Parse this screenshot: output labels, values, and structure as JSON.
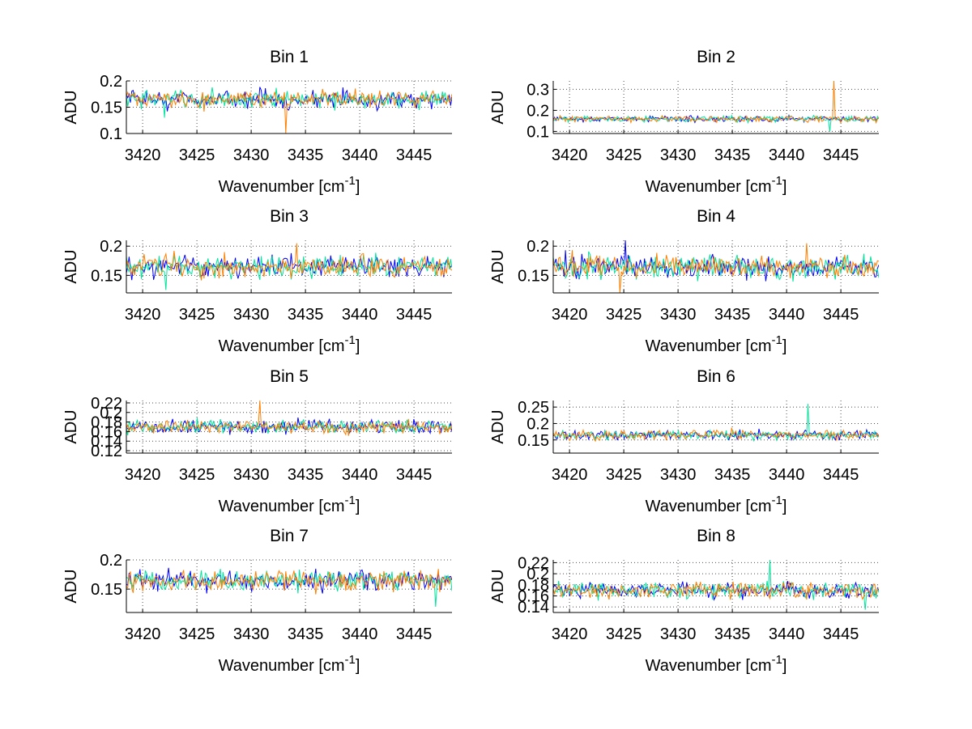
{
  "chart_data": {
    "type": "line",
    "series_colors": [
      "#0000ff",
      "#00e59a",
      "#ff7f00"
    ],
    "x_min": 3418.5,
    "x_max": 3448.5,
    "points_per_series": 240,
    "xticks": [
      3420,
      3425,
      3430,
      3435,
      3440,
      3445
    ],
    "xtick_labels": [
      "3420",
      "3425",
      "3430",
      "3435",
      "3440",
      "3445"
    ],
    "xlabel_text": "Wavenumber [cm",
    "xlabel_sup": "-1",
    "xlabel_close": "]",
    "ylabel": "ADU",
    "panels": [
      {
        "title": "Bin 1",
        "ylim": [
          0.1,
          0.2
        ],
        "yticks": [
          0.1,
          0.15,
          0.2
        ],
        "ytick_labels": [
          "0.1",
          "0.15",
          "0.2"
        ],
        "mean": 0.165,
        "noise": 0.012,
        "spikes": [
          {
            "series": 2,
            "x": 3433.2,
            "y": 0.1
          },
          {
            "series": 1,
            "x": 3422.0,
            "y": 0.13
          }
        ]
      },
      {
        "title": "Bin 2",
        "ylim": [
          0.09,
          0.34
        ],
        "yticks": [
          0.1,
          0.2,
          0.3
        ],
        "ytick_labels": [
          "0.1",
          "0.2",
          "0.3"
        ],
        "mean": 0.16,
        "noise": 0.01,
        "spikes": [
          {
            "series": 2,
            "x": 3444.3,
            "y": 0.34
          },
          {
            "series": 1,
            "x": 3444.0,
            "y": 0.1
          }
        ]
      },
      {
        "title": "Bin 3",
        "ylim": [
          0.12,
          0.21
        ],
        "yticks": [
          0.15,
          0.2
        ],
        "ytick_labels": [
          "0.15",
          "0.2"
        ],
        "mean": 0.165,
        "noise": 0.013,
        "spikes": [
          {
            "series": 2,
            "x": 3434.2,
            "y": 0.205
          },
          {
            "series": 1,
            "x": 3422.2,
            "y": 0.125
          }
        ]
      },
      {
        "title": "Bin 4",
        "ylim": [
          0.12,
          0.21
        ],
        "yticks": [
          0.15,
          0.2
        ],
        "ytick_labels": [
          "0.15",
          "0.2"
        ],
        "mean": 0.165,
        "noise": 0.014,
        "spikes": [
          {
            "series": 0,
            "x": 3425.1,
            "y": 0.21
          },
          {
            "series": 2,
            "x": 3424.6,
            "y": 0.12
          },
          {
            "series": 2,
            "x": 3441.8,
            "y": 0.205
          }
        ]
      },
      {
        "title": "Bin 5",
        "ylim": [
          0.115,
          0.225
        ],
        "yticks": [
          0.12,
          0.14,
          0.16,
          0.18,
          0.2,
          0.22
        ],
        "ytick_labels": [
          "0.12",
          "0.14",
          "0.16",
          "0.18",
          "0.2",
          "0.22"
        ],
        "mean": 0.17,
        "noise": 0.01,
        "spikes": [
          {
            "series": 2,
            "x": 3430.8,
            "y": 0.225
          }
        ]
      },
      {
        "title": "Bin 6",
        "ylim": [
          0.11,
          0.27
        ],
        "yticks": [
          0.15,
          0.2,
          0.25
        ],
        "ytick_labels": [
          "0.15",
          "0.2",
          "0.25"
        ],
        "mean": 0.165,
        "noise": 0.01,
        "spikes": [
          {
            "series": 1,
            "x": 3442.0,
            "y": 0.26
          }
        ]
      },
      {
        "title": "Bin 7",
        "ylim": [
          0.11,
          0.2
        ],
        "yticks": [
          0.15,
          0.2
        ],
        "ytick_labels": [
          "0.15",
          "0.2"
        ],
        "mean": 0.165,
        "noise": 0.012,
        "spikes": [
          {
            "series": 1,
            "x": 3447.0,
            "y": 0.12
          }
        ]
      },
      {
        "title": "Bin 8",
        "ylim": [
          0.13,
          0.225
        ],
        "yticks": [
          0.14,
          0.16,
          0.18,
          0.2,
          0.22
        ],
        "ytick_labels": [
          "0.14",
          "0.16",
          "0.18",
          "0.2",
          "0.22"
        ],
        "mean": 0.17,
        "noise": 0.01,
        "spikes": [
          {
            "series": 1,
            "x": 3438.4,
            "y": 0.225
          },
          {
            "series": 1,
            "x": 3447.2,
            "y": 0.135
          }
        ]
      }
    ]
  }
}
